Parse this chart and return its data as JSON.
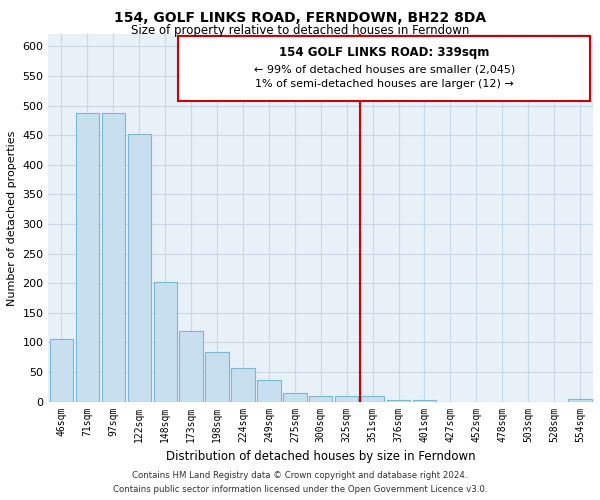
{
  "title": "154, GOLF LINKS ROAD, FERNDOWN, BH22 8DA",
  "subtitle": "Size of property relative to detached houses in Ferndown",
  "xlabel": "Distribution of detached houses by size in Ferndown",
  "ylabel": "Number of detached properties",
  "bin_labels": [
    "46sqm",
    "71sqm",
    "97sqm",
    "122sqm",
    "148sqm",
    "173sqm",
    "198sqm",
    "224sqm",
    "249sqm",
    "275sqm",
    "300sqm",
    "325sqm",
    "351sqm",
    "376sqm",
    "401sqm",
    "427sqm",
    "452sqm",
    "478sqm",
    "503sqm",
    "528sqm",
    "554sqm"
  ],
  "bar_values": [
    105,
    488,
    488,
    452,
    202,
    120,
    83,
    57,
    37,
    15,
    10,
    10,
    10,
    2,
    2,
    0,
    0,
    0,
    0,
    0,
    4
  ],
  "bar_color": "#c8dff0",
  "bar_edge_color": "#7ab8d4",
  "vline_x_idx": 12,
  "vline_color": "#cc0000",
  "ylim": [
    0,
    620
  ],
  "yticks": [
    0,
    50,
    100,
    150,
    200,
    250,
    300,
    350,
    400,
    450,
    500,
    550,
    600
  ],
  "annotation_title": "154 GOLF LINKS ROAD: 339sqm",
  "annotation_line1": "← 99% of detached houses are smaller (2,045)",
  "annotation_line2": "1% of semi-detached houses are larger (12) →",
  "footer_line1": "Contains HM Land Registry data © Crown copyright and database right 2024.",
  "footer_line2": "Contains public sector information licensed under the Open Government Licence v3.0.",
  "background_color": "#ffffff",
  "grid_color": "#c8d8e8"
}
